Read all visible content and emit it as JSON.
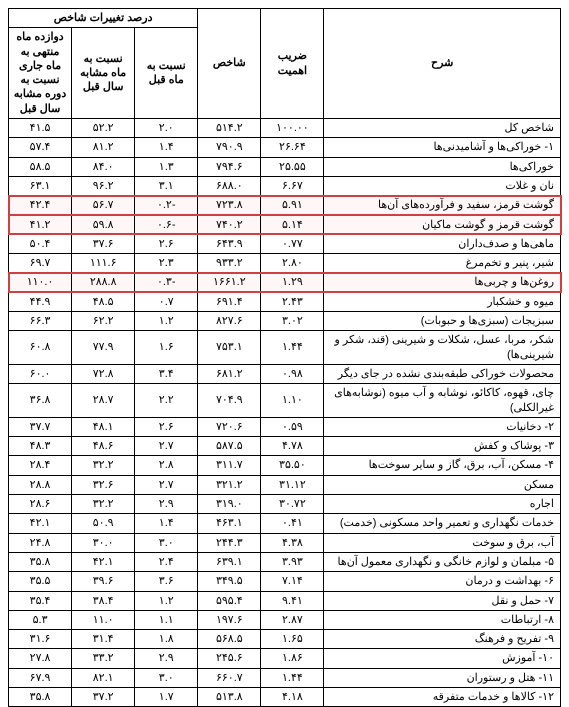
{
  "headers": {
    "desc": "شرح",
    "coef": "ضریب اهمیت",
    "index": "شاخص",
    "group_pct": "درصد تغییرات شاخص",
    "pct_month": "نسبت به ماه قبل",
    "pct_year_month": "نسبت به ماه مشابه سال قبل",
    "pct_12mo": "دوازده ماه منتهی به ماه جاری نسبت به دوره مشابه سال قبل"
  },
  "highlight_color": "#d04040",
  "rows": [
    {
      "desc": "شاخص کل",
      "coef": "۱۰۰.۰۰",
      "idx": "۵۱۴.۲",
      "m": "۲.۰",
      "ym": "۵۲.۲",
      "y12": "۴۱.۵",
      "hl": false
    },
    {
      "desc": "۱- خوراکی‌ها و آشامیدنی‌ها",
      "coef": "۲۶.۶۴",
      "idx": "۷۹۰.۹",
      "m": "۱.۴",
      "ym": "۸۱.۲",
      "y12": "۵۷.۴",
      "hl": false
    },
    {
      "desc": "خوراکی‌ها",
      "coef": "۲۵.۵۵",
      "idx": "۷۹۴.۶",
      "m": "۱.۳",
      "ym": "۸۴.۰",
      "y12": "۵۸.۵",
      "hl": false
    },
    {
      "desc": "نان و غلات",
      "coef": "۶.۶۷",
      "idx": "۶۸۸.۰",
      "m": "۳.۱",
      "ym": "۹۶.۲",
      "y12": "۶۳.۱",
      "hl": false
    },
    {
      "desc": "گوشت قرمز، سفید و فرآورده‌های آن‌ها",
      "coef": "۵.۹۱",
      "idx": "۷۲۳.۸",
      "m": "-۰.۲",
      "ym": "۵۶.۷",
      "y12": "۴۲.۴",
      "hl": true
    },
    {
      "desc": "گوشت قرمز و گوشت ماکیان",
      "coef": "۵.۱۴",
      "idx": "۷۴۰.۲",
      "m": "-۰.۶",
      "ym": "۵۹.۸",
      "y12": "۴۱.۲",
      "hl": true
    },
    {
      "desc": "ماهی‌ها و صدف‌داران",
      "coef": "۰.۷۷",
      "idx": "۶۴۳.۹",
      "m": "۲.۶",
      "ym": "۳۷.۶",
      "y12": "۵۰.۴",
      "hl": false
    },
    {
      "desc": "شیر، پنیر و تخم‌مرغ",
      "coef": "۲.۸۰",
      "idx": "۹۳۳.۲",
      "m": "۲.۳",
      "ym": "۱۱۱.۶",
      "y12": "۶۹.۷",
      "hl": false
    },
    {
      "desc": "روغن‌ها و چربی‌ها",
      "coef": "۱.۲۹",
      "idx": "۱۶۶۱.۲",
      "m": "-۰.۳",
      "ym": "۲۸۸.۸",
      "y12": "۱۱۰.۰",
      "hl": true
    },
    {
      "desc": "میوه و خشکبار",
      "coef": "۲.۴۳",
      "idx": "۶۹۱.۴",
      "m": "۰.۷",
      "ym": "۴۸.۵",
      "y12": "۴۴.۹",
      "hl": false
    },
    {
      "desc": "سبزیجات (سبزی‌ها و حبوبات)",
      "coef": "۳.۰۲",
      "idx": "۸۲۷.۶",
      "m": "۱.۲",
      "ym": "۶۲.۲",
      "y12": "۶۶.۳",
      "hl": false
    },
    {
      "desc": "شکر، مربا، عسل، شکلات و شیرینی (قند، شکر و شیرینی‌ها)",
      "coef": "۱.۴۴",
      "idx": "۷۵۳.۱",
      "m": "۱.۶",
      "ym": "۷۷.۹",
      "y12": "۶۰.۸",
      "hl": false
    },
    {
      "desc": "محصولات خوراکی طبقه‌بندی نشده در جای دیگر",
      "coef": "۰.۹۸",
      "idx": "۶۸۱.۲",
      "m": "۳.۴",
      "ym": "۷۲.۸",
      "y12": "۶۰.۰",
      "hl": false
    },
    {
      "desc": "چای، قهوه، کاکائو، نوشابه و آب میوه (نوشابه‌های غیرالکلی)",
      "coef": "۱.۱۰",
      "idx": "۷۰۴.۹",
      "m": "۲.۲",
      "ym": "۲۸.۷",
      "y12": "۳۶.۸",
      "hl": false
    },
    {
      "desc": "۲- دخانیات",
      "coef": "۰.۵۹",
      "idx": "۷۲۰.۶",
      "m": "۲.۶",
      "ym": "۴۸.۱",
      "y12": "۳۷.۷",
      "hl": false
    },
    {
      "desc": "۳- پوشاک و کفش",
      "coef": "۴.۷۸",
      "idx": "۵۸۷.۵",
      "m": "۲.۷",
      "ym": "۴۸.۶",
      "y12": "۴۸.۳",
      "hl": false
    },
    {
      "desc": "۴- مسکن، آب، برق، گاز و سایر سوخت‌ها",
      "coef": "۳۵.۵۰",
      "idx": "۳۱۱.۷",
      "m": "۲.۸",
      "ym": "۳۲.۲",
      "y12": "۲۸.۴",
      "hl": false
    },
    {
      "desc": "مسکن",
      "coef": "۳۱.۱۲",
      "idx": "۳۲۱.۲",
      "m": "۲.۷",
      "ym": "۳۲.۶",
      "y12": "۲۸.۸",
      "hl": false
    },
    {
      "desc": "اجاره",
      "coef": "۳۰.۷۲",
      "idx": "۳۱۹.۰",
      "m": "۲.۹",
      "ym": "۳۲.۲",
      "y12": "۲۸.۶",
      "hl": false
    },
    {
      "desc": "خدمات نگهداری و تعمیر واحد مسکونی (خدمت)",
      "coef": "۰.۴۱",
      "idx": "۴۶۳.۱",
      "m": "۱.۴",
      "ym": "۵۰.۹",
      "y12": "۴۲.۱",
      "hl": false
    },
    {
      "desc": "آب، برق و سوخت",
      "coef": "۴.۳۸",
      "idx": "۲۴۴.۳",
      "m": "۳.۰",
      "ym": "۳۰.۰",
      "y12": "۲۴.۸",
      "hl": false
    },
    {
      "desc": "۵- مبلمان و لوازم خانگی و نگهداری معمول آن‌ها",
      "coef": "۳.۹۳",
      "idx": "۶۳۹.۱",
      "m": "۲.۴",
      "ym": "۴۲.۱",
      "y12": "۳۵.۸",
      "hl": false
    },
    {
      "desc": "۶- بهداشت و درمان",
      "coef": "۷.۱۴",
      "idx": "۳۴۹.۵",
      "m": "۳.۶",
      "ym": "۳۹.۶",
      "y12": "۳۵.۵",
      "hl": false
    },
    {
      "desc": "۷- حمل و نقل",
      "coef": "۹.۴۱",
      "idx": "۵۹۵.۴",
      "m": "۱.۲",
      "ym": "۳۸.۴",
      "y12": "۳۵.۴",
      "hl": false
    },
    {
      "desc": "۸- ارتباطات",
      "coef": "۲.۸۷",
      "idx": "۱۹۷.۶",
      "m": "۱.۱",
      "ym": "۱۱.۰",
      "y12": "۵.۳",
      "hl": false
    },
    {
      "desc": "۹- تفریح و فرهنگ",
      "coef": "۱.۶۵",
      "idx": "۵۶۸.۵",
      "m": "۱.۸",
      "ym": "۳۱.۴",
      "y12": "۳۱.۶",
      "hl": false
    },
    {
      "desc": "۱۰- آموزش",
      "coef": "۱.۸۶",
      "idx": "۲۴۵.۶",
      "m": "۲.۹",
      "ym": "۳۳.۲",
      "y12": "۲۷.۸",
      "hl": false
    },
    {
      "desc": "۱۱- هتل و رستوران",
      "coef": "۱.۴۴",
      "idx": "۶۶۰.۷",
      "m": "۳.۰",
      "ym": "۸۲.۱",
      "y12": "۶۷.۹",
      "hl": false
    },
    {
      "desc": "۱۲- کالاها و خدمات متفرقه",
      "coef": "۴.۱۸",
      "idx": "۵۱۳.۸",
      "m": "۱.۷",
      "ym": "۳۷.۲",
      "y12": "۳۵.۸",
      "hl": false
    }
  ]
}
